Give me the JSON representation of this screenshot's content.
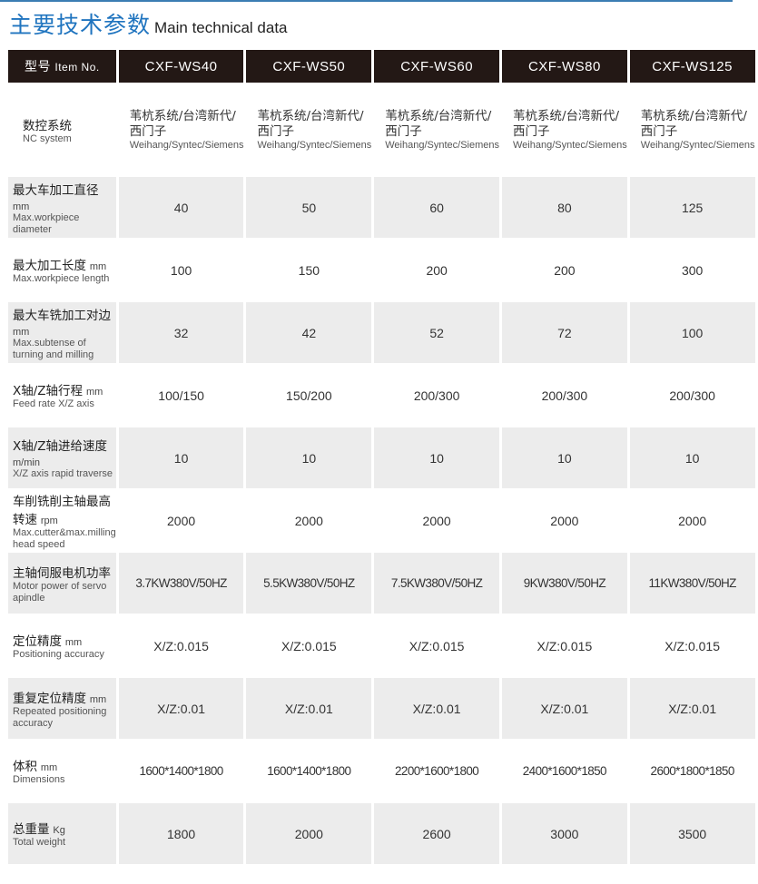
{
  "title": {
    "zh": "主要技术参数",
    "en": "Main technical data"
  },
  "header": {
    "label_zh": "型号",
    "label_en": "Item No.",
    "models": [
      "CXF-WS40",
      "CXF-WS50",
      "CXF-WS60",
      "CXF-WS80",
      "CXF-WS125"
    ]
  },
  "nc": {
    "zh": "数控系统",
    "en": "NC system",
    "value_zh": "苇杭系统/台湾新代/西门子",
    "value_en": "Weihang/Syntec/Siemens"
  },
  "rows": [
    {
      "zh": "最大车加工直径",
      "unit": "mm",
      "en": "Max.workpiece diameter",
      "values": [
        "40",
        "50",
        "60",
        "80",
        "125"
      ]
    },
    {
      "zh": "最大加工长度",
      "unit": "mm",
      "en": "Max.workpiece length",
      "values": [
        "100",
        "150",
        "200",
        "200",
        "300"
      ]
    },
    {
      "zh": "最大车铣加工对边",
      "unit": "mm",
      "en": "Max.subtense of turning and milling",
      "values": [
        "32",
        "42",
        "52",
        "72",
        "100"
      ]
    },
    {
      "zh": "X轴/Z轴行程",
      "unit": "mm",
      "en": "Feed rate X/Z axis",
      "values": [
        "100/150",
        "150/200",
        "200/300",
        "200/300",
        "200/300"
      ]
    },
    {
      "zh": "X轴/Z轴进给速度",
      "unit": "m/min",
      "en": "X/Z axis rapid traverse",
      "values": [
        "10",
        "10",
        "10",
        "10",
        "10"
      ]
    },
    {
      "zh": "车削铣削主轴最高转速",
      "unit": "rpm",
      "en": "Max.cutter&max.milling head speed",
      "values": [
        "2000",
        "2000",
        "2000",
        "2000",
        "2000"
      ]
    },
    {
      "zh": "主轴伺服电机功率",
      "unit": "",
      "en": "Motor power of servo apindle",
      "values": [
        "3.7KW380V/50HZ",
        "5.5KW380V/50HZ",
        "7.5KW380V/50HZ",
        "9KW380V/50HZ",
        "11KW380V/50HZ"
      ]
    },
    {
      "zh": "定位精度",
      "unit": "mm",
      "en": "Positioning accuracy",
      "values": [
        "X/Z:0.015",
        "X/Z:0.015",
        "X/Z:0.015",
        "X/Z:0.015",
        "X/Z:0.015"
      ]
    },
    {
      "zh": "重复定位精度",
      "unit": "mm",
      "en": "Repeated positioning accuracy",
      "values": [
        "X/Z:0.01",
        "X/Z:0.01",
        "X/Z:0.01",
        "X/Z:0.01",
        "X/Z:0.01"
      ]
    },
    {
      "zh": "体积",
      "unit": "mm",
      "en": "Dimensions",
      "values": [
        "1600*1400*1800",
        "1600*1400*1800",
        "2200*1600*1800",
        "2400*1600*1850",
        "2600*1800*1850"
      ]
    },
    {
      "zh": "总重量",
      "unit": "Kg",
      "en": "Total weight",
      "values": [
        "1800",
        "2000",
        "2600",
        "3000",
        "3500"
      ]
    }
  ],
  "colors": {
    "title_blue": "#1f74bf",
    "header_bg": "#231815",
    "row_gray": "#ececec"
  }
}
